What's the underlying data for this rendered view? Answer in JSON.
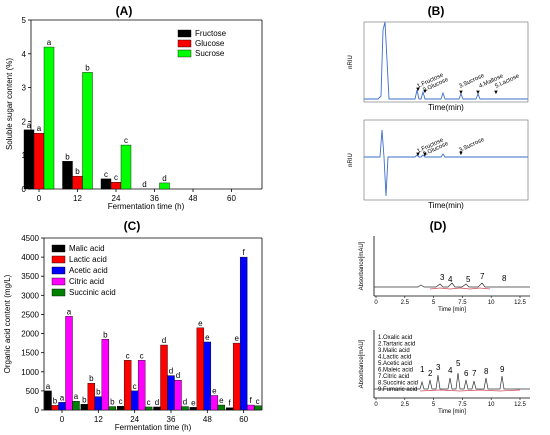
{
  "panels": {
    "A": "(A)",
    "B": "(B)",
    "C": "(C)",
    "D": "(D)"
  },
  "chart_data": [
    {
      "type": "bar",
      "ylabel": "Soluble sugar content (%)",
      "xlabel": "Fermentation time (h)",
      "categories": [
        "0",
        "12",
        "24",
        "36",
        "48",
        "60"
      ],
      "ylim": [
        0,
        5
      ],
      "yticks": [
        "0",
        "1",
        "2",
        "3",
        "4",
        "5"
      ],
      "legend_position": "top-right",
      "series": [
        {
          "name": "Fructose",
          "color": "#000000",
          "values": [
            1.75,
            0.82,
            0.3,
            0.0,
            0.0,
            0.0
          ],
          "letters": [
            "a",
            "b",
            "c",
            "d",
            "",
            ""
          ]
        },
        {
          "name": "Glucose",
          "color": "#ff0000",
          "values": [
            1.65,
            0.38,
            0.2,
            0.0,
            0.0,
            0.0
          ],
          "letters": [
            "a",
            "b",
            "c",
            "",
            "",
            ""
          ]
        },
        {
          "name": "Sucrose",
          "color": "#00ff00",
          "values": [
            4.2,
            3.45,
            1.3,
            0.18,
            0.0,
            0.0
          ],
          "letters": [
            "a",
            "b",
            "c",
            "d",
            "",
            ""
          ]
        }
      ]
    },
    {
      "type": "line",
      "ylabel": "nRIU",
      "xlabel": "Time(min)",
      "peaks": [
        "1.Fructose",
        "2.Glucose",
        "3.Sucrose",
        "4.Maltose",
        "5.Lactose"
      ]
    },
    {
      "type": "line",
      "ylabel": "nRIU",
      "xlabel": "Time(min)",
      "peaks": [
        "1.Fructose",
        "2.Glucose",
        "3.Sucrose"
      ]
    },
    {
      "type": "bar",
      "ylabel": "Organic acid content (mg/L)",
      "xlabel": "Fermentation time (h)",
      "categories": [
        "0",
        "12",
        "24",
        "36",
        "48",
        "60"
      ],
      "ylim": [
        0,
        4500
      ],
      "yticks": [
        "0",
        "500",
        "1000",
        "1500",
        "2000",
        "2500",
        "3000",
        "3500",
        "4000",
        "4500"
      ],
      "legend_position": "top-left",
      "series": [
        {
          "name": "Malic acid",
          "color": "#000000",
          "values": [
            500,
            150,
            100,
            80,
            70,
            60
          ],
          "letters": [
            "a",
            "b",
            "c",
            "d",
            "e",
            "f"
          ]
        },
        {
          "name": "Lactic acid",
          "color": "#ff0000",
          "values": [
            120,
            700,
            1300,
            1700,
            2150,
            1750
          ],
          "letters": [
            "b",
            "b",
            "c",
            "d",
            "e",
            "e"
          ]
        },
        {
          "name": "Acetic acid",
          "color": "#0000ff",
          "values": [
            200,
            350,
            500,
            900,
            1780,
            4000
          ],
          "letters": [
            "a",
            "b",
            "c",
            "d",
            "e",
            "f"
          ]
        },
        {
          "name": "Citric acid",
          "color": "#ff00ff",
          "values": [
            2450,
            1850,
            1300,
            780,
            380,
            130
          ],
          "letters": [
            "a",
            "b",
            "c",
            "d",
            "e",
            "f"
          ]
        },
        {
          "name": "Succinic acid",
          "color": "#008000",
          "values": [
            230,
            90,
            80,
            90,
            130,
            110
          ],
          "letters": [
            "a",
            "b",
            "c",
            "d",
            "e",
            "c"
          ]
        }
      ]
    },
    {
      "type": "line",
      "ylabel": "Absorbance[mAU]",
      "xlabel": "Time [min]",
      "xticks": [
        "0",
        "2.5",
        "5",
        "7.5",
        "10",
        "12.5"
      ],
      "peaks": [
        "3",
        "4",
        "5",
        "7",
        "8"
      ]
    },
    {
      "type": "line",
      "ylabel": "Absorbance[mAU]",
      "xlabel": "Time [min]",
      "xticks": [
        "0",
        "2.5",
        "5",
        "7.5",
        "10",
        "12.5"
      ],
      "peaks": [
        "1",
        "2",
        "3",
        "4",
        "5",
        "6",
        "7",
        "8",
        "9"
      ],
      "legend": [
        "1.Oxalic acid",
        "2.Tartaric acid",
        "3.Malic acid",
        "4.Lactic acid",
        "5.Acetic acid",
        "6.Maleic acid",
        "7.Citric acid",
        "8.Succinic acid",
        "9.Fumaric acid"
      ]
    }
  ]
}
